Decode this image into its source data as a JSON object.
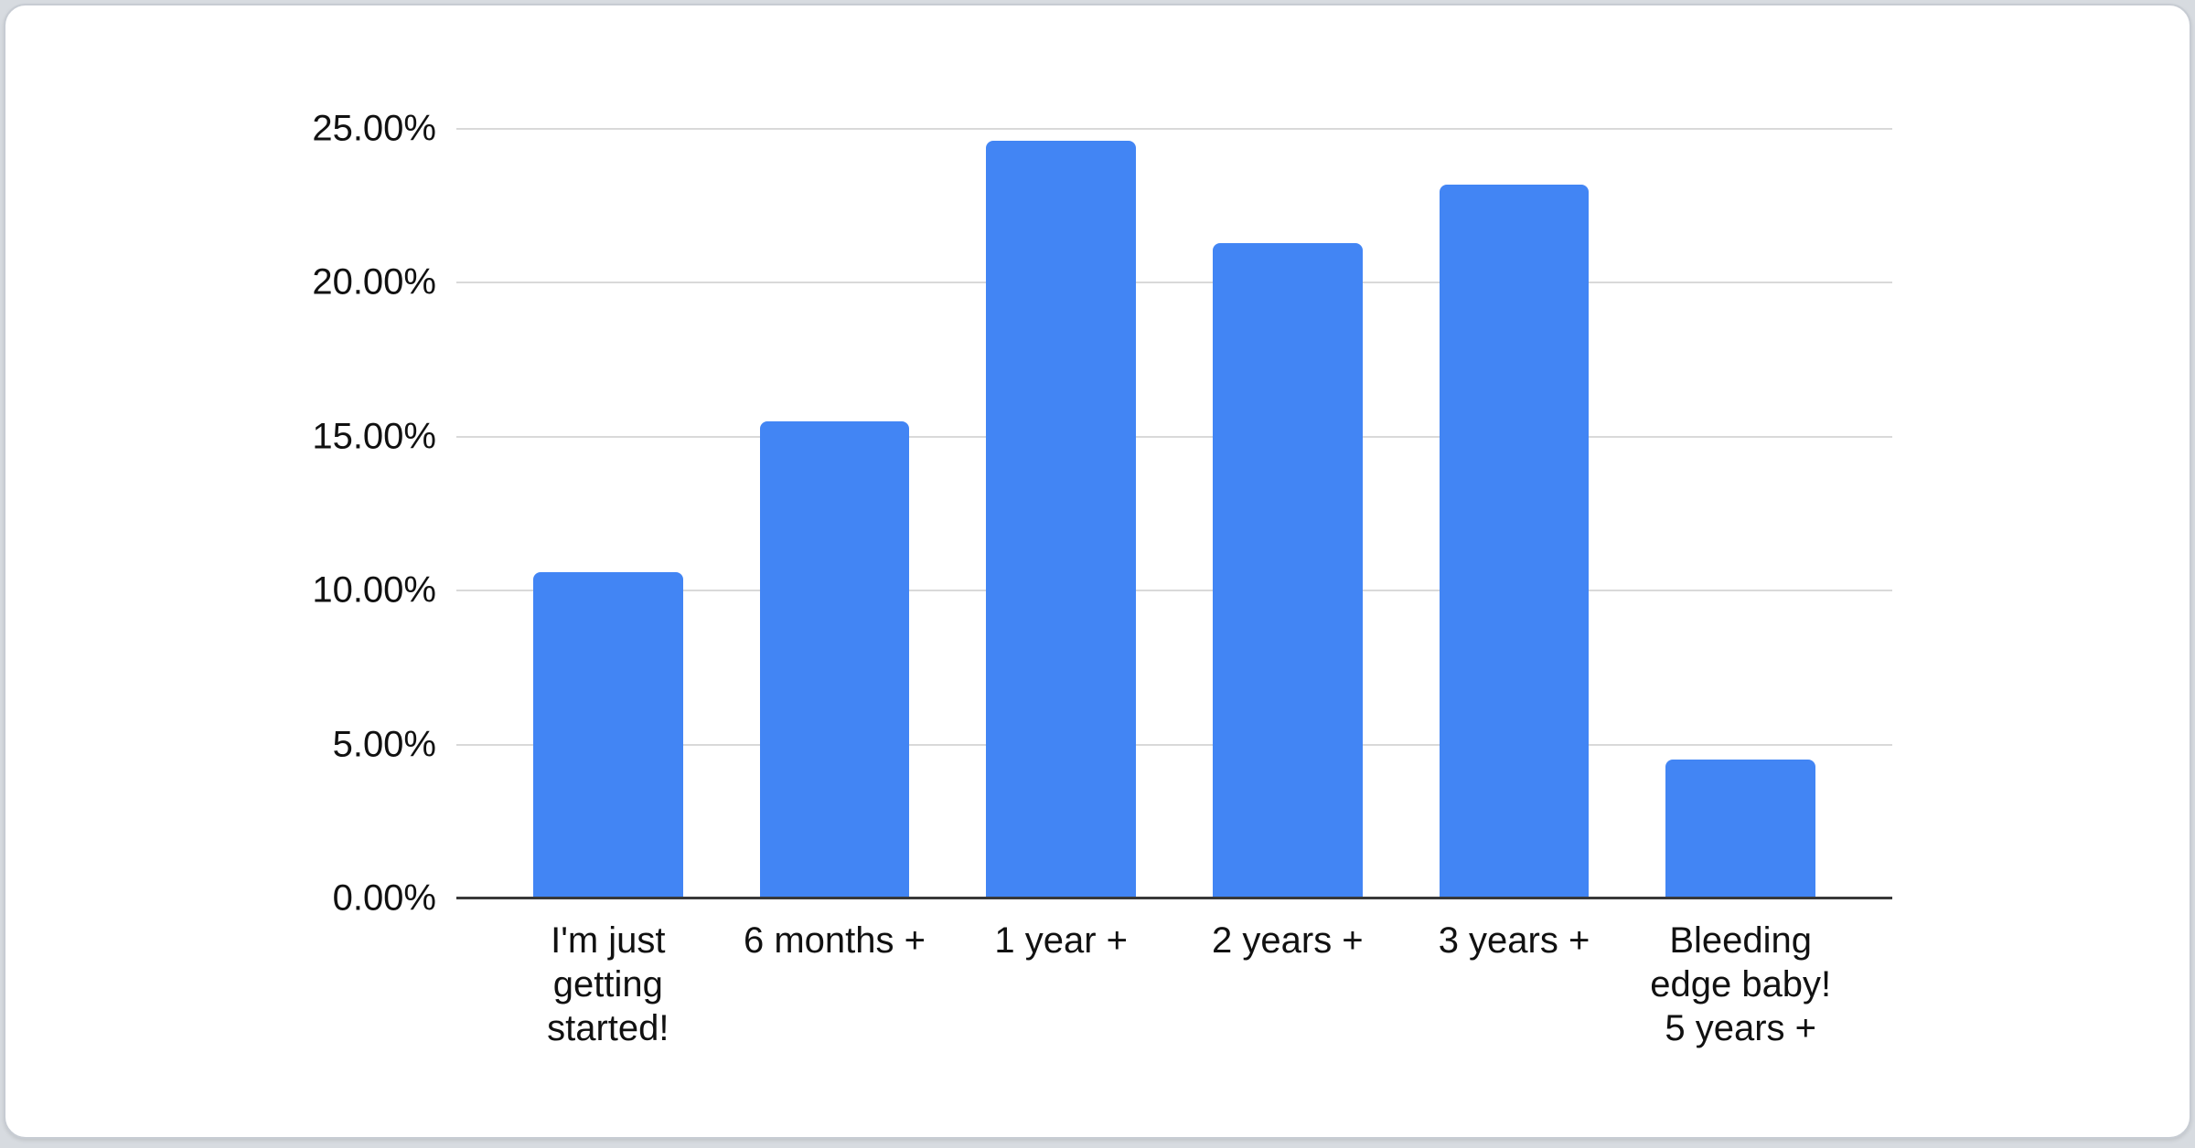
{
  "page": {
    "background_color": "#d7dbe0",
    "card_background": "#ffffff",
    "card_border_color": "#c7ccd3"
  },
  "chart_data": {
    "type": "bar",
    "title": "",
    "xlabel": "",
    "ylabel": "",
    "legend": "none",
    "grid": true,
    "categories": [
      "I'm just getting started!",
      "6 months +",
      "1 year +",
      "2 years +",
      "3 years +",
      "Bleeding edge baby! 5 years +"
    ],
    "category_lines": [
      [
        "I'm just",
        "getting",
        "started!"
      ],
      [
        "6 months +"
      ],
      [
        "1 year +"
      ],
      [
        "2 years +"
      ],
      [
        "3 years +"
      ],
      [
        "Bleeding",
        "edge baby!",
        "5 years +"
      ]
    ],
    "values": [
      10.6,
      15.5,
      24.6,
      21.3,
      23.2,
      4.5
    ],
    "unit": "%",
    "ylim": [
      0,
      25
    ],
    "y_ticks": [
      "25.00%",
      "20.00%",
      "15.00%",
      "10.00%",
      "5.00%",
      "0.00%"
    ],
    "y_tick_values": [
      25,
      20,
      15,
      10,
      5,
      0
    ],
    "bar_color": "#4285F4",
    "gridline_color": "#d9d9d9",
    "axis_line_color": "#383838",
    "label_color": "#111111"
  }
}
